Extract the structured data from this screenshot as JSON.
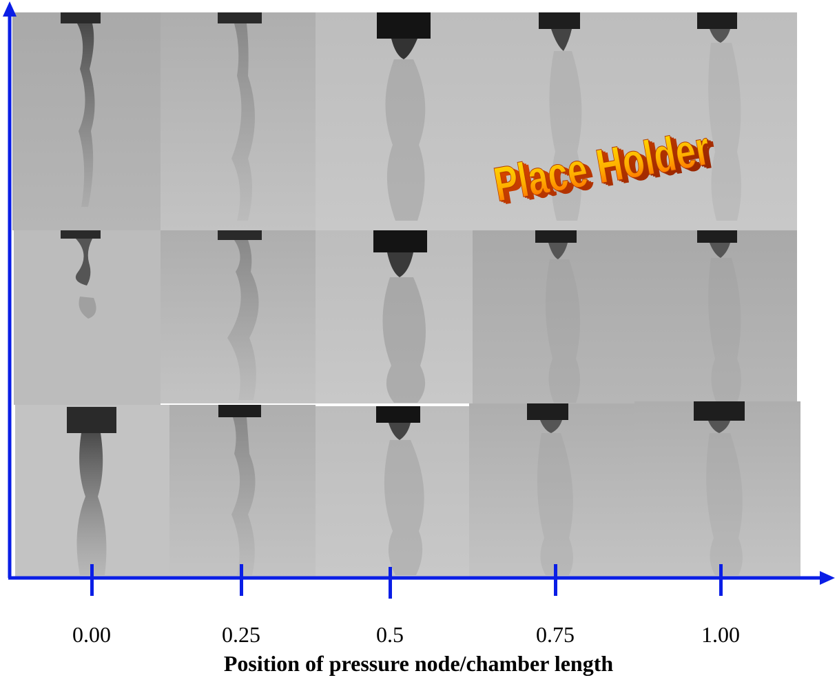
{
  "placeholder_text": "Place Holder",
  "x_axis": {
    "title": "Position of pressure node/chamber length",
    "ticks": [
      "0.00",
      "0.25",
      "0.5",
      "0.75",
      "1.00"
    ]
  },
  "colors": {
    "axis": "#0a1ee6",
    "placeholder_fill_top": "#ffe000",
    "placeholder_fill_bottom": "#ff5a00",
    "placeholder_depth": "#c23000"
  },
  "grid": {
    "rows": 3,
    "columns": 5
  }
}
